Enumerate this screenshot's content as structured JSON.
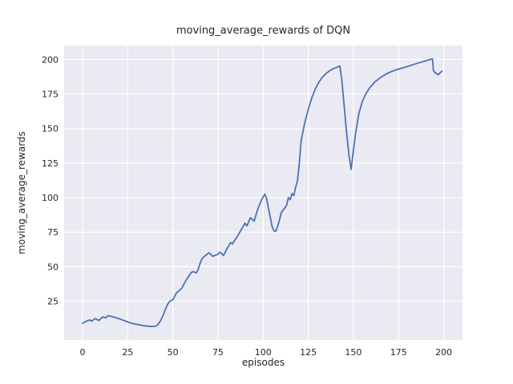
{
  "figure": {
    "title": "moving_average_rewards of DQN",
    "xlabel": "episodes",
    "ylabel": "moving_average_rewards"
  },
  "chart_data": {
    "type": "line",
    "title": "moving_average_rewards of DQN",
    "xlabel": "episodes",
    "ylabel": "moving_average_rewards",
    "x_ticks": [
      0,
      25,
      50,
      75,
      100,
      125,
      150,
      175,
      200
    ],
    "y_ticks": [
      25,
      50,
      75,
      100,
      125,
      150,
      175,
      200
    ],
    "xlim": [
      -10.2,
      210.4
    ],
    "ylim": [
      -3.1,
      210.1
    ],
    "grid": true,
    "legend": false,
    "style": "seaborn-darkgrid",
    "colors": {
      "line": "#4c72b0",
      "plot_bg": "#eaeaf2",
      "grid": "#ffffff",
      "text": "#262626",
      "fig_bg": "#ffffff"
    },
    "series": [
      {
        "name": "moving_average_rewards",
        "points": [
          [
            0,
            9
          ],
          [
            2,
            10.5
          ],
          [
            4,
            11.5
          ],
          [
            5,
            10.5
          ],
          [
            7,
            12.5
          ],
          [
            9,
            11
          ],
          [
            11,
            13.5
          ],
          [
            13,
            13
          ],
          [
            14,
            14.5
          ],
          [
            16,
            14
          ],
          [
            18,
            13.2
          ],
          [
            20,
            12.5
          ],
          [
            22,
            11.5
          ],
          [
            24,
            10.5
          ],
          [
            26,
            9.5
          ],
          [
            28,
            8.8
          ],
          [
            30,
            8.2
          ],
          [
            32,
            7.8
          ],
          [
            34,
            7.2
          ],
          [
            36,
            6.9
          ],
          [
            38,
            6.7
          ],
          [
            40,
            6.8
          ],
          [
            41,
            7.2
          ],
          [
            42,
            8.5
          ],
          [
            43,
            10.5
          ],
          [
            44,
            13
          ],
          [
            45,
            16
          ],
          [
            46,
            19.5
          ],
          [
            47,
            22.5
          ],
          [
            48,
            24.5
          ],
          [
            49,
            25.5
          ],
          [
            50,
            26
          ],
          [
            51,
            28.5
          ],
          [
            52,
            31
          ],
          [
            53,
            32
          ],
          [
            55,
            34.5
          ],
          [
            57,
            39.5
          ],
          [
            59,
            43.5
          ],
          [
            60,
            45.5
          ],
          [
            61,
            46.5
          ],
          [
            62,
            46
          ],
          [
            63,
            45.5
          ],
          [
            64,
            48
          ],
          [
            65,
            52
          ],
          [
            66,
            55.5
          ],
          [
            68,
            58
          ],
          [
            70,
            60
          ],
          [
            71,
            59
          ],
          [
            72,
            57.5
          ],
          [
            74,
            58.5
          ],
          [
            75,
            59
          ],
          [
            76,
            60.5
          ],
          [
            77,
            59.5
          ],
          [
            78,
            58
          ],
          [
            80,
            63
          ],
          [
            82,
            67.5
          ],
          [
            83,
            66.5
          ],
          [
            84,
            68.5
          ],
          [
            86,
            72.5
          ],
          [
            88,
            77
          ],
          [
            90,
            81.5
          ],
          [
            91,
            79.5
          ],
          [
            93,
            85.5
          ],
          [
            95,
            83
          ],
          [
            97,
            91.5
          ],
          [
            99,
            98
          ],
          [
            100,
            100.5
          ],
          [
            101,
            102.5
          ],
          [
            102,
            99
          ],
          [
            103,
            92
          ],
          [
            104,
            85.5
          ],
          [
            105,
            79
          ],
          [
            106,
            76
          ],
          [
            107,
            75.5
          ],
          [
            108,
            79
          ],
          [
            109,
            83.5
          ],
          [
            110,
            89
          ],
          [
            111,
            91
          ],
          [
            112,
            92.5
          ],
          [
            113,
            94.5
          ],
          [
            114,
            100
          ],
          [
            115,
            98.5
          ],
          [
            116,
            103
          ],
          [
            117,
            101.5
          ],
          [
            118,
            107.5
          ],
          [
            119,
            112
          ],
          [
            120,
            124
          ],
          [
            121,
            141
          ],
          [
            123,
            154
          ],
          [
            125,
            164
          ],
          [
            127,
            172.5
          ],
          [
            129,
            179
          ],
          [
            131,
            184
          ],
          [
            133,
            187.5
          ],
          [
            135,
            190
          ],
          [
            137,
            192
          ],
          [
            139,
            193.5
          ],
          [
            141,
            194.5
          ],
          [
            142.5,
            195.3
          ],
          [
            143.5,
            186
          ],
          [
            144.5,
            172
          ],
          [
            146,
            150
          ],
          [
            147.5,
            131
          ],
          [
            148.7,
            120.5
          ],
          [
            149.5,
            129
          ],
          [
            151,
            145
          ],
          [
            153,
            161
          ],
          [
            155,
            170
          ],
          [
            157,
            175.5
          ],
          [
            159,
            179.5
          ],
          [
            162,
            184
          ],
          [
            165,
            187
          ],
          [
            168,
            189.5
          ],
          [
            171,
            191.3
          ],
          [
            174,
            192.7
          ],
          [
            177,
            193.9
          ],
          [
            180,
            195
          ],
          [
            183,
            196.3
          ],
          [
            186,
            197.5
          ],
          [
            189,
            198.7
          ],
          [
            191,
            199.5
          ],
          [
            193,
            200.2
          ],
          [
            193.8,
            200.4
          ],
          [
            194.3,
            192
          ],
          [
            195,
            190.8
          ],
          [
            196,
            189.8
          ],
          [
            197,
            188.9
          ],
          [
            198,
            190.5
          ],
          [
            199,
            191.5
          ]
        ]
      }
    ]
  }
}
